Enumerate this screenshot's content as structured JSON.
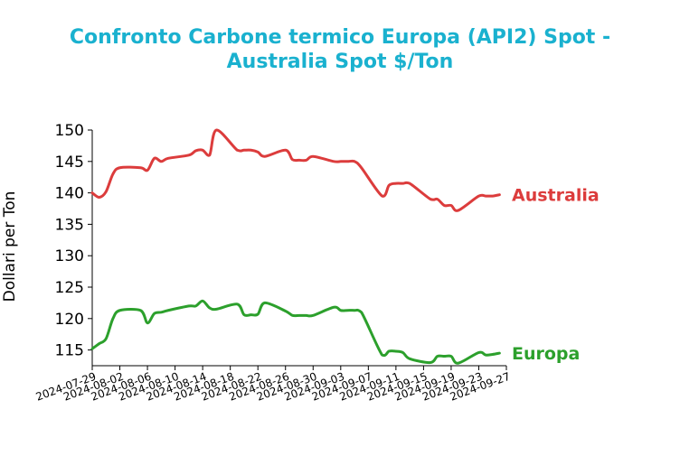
{
  "colors": {
    "title": "#1ab1cf",
    "australia": "#dc3c3c",
    "europa": "#2ca02c",
    "axis": "#000000"
  },
  "chart_data": {
    "type": "line",
    "title_line1": "Confronto Carbone termico Europa (API2) Spot -",
    "title_line2": "Australia Spot $/Ton",
    "xlabel": "",
    "ylabel": "Dollari per Ton",
    "ylim": [
      112.5,
      150
    ],
    "yticks": [
      115,
      120,
      125,
      130,
      135,
      140,
      145,
      150
    ],
    "xlim": [
      "2024-07-29",
      "2024-09-27"
    ],
    "xticks": [
      "2024-07-29",
      "2024-08-02",
      "2024-08-06",
      "2024-08-10",
      "2024-08-14",
      "2024-08-18",
      "2024-08-22",
      "2024-08-26",
      "2024-08-30",
      "2024-09-03",
      "2024-09-07",
      "2024-09-11",
      "2024-09-15",
      "2024-09-19",
      "2024-09-23",
      "2024-09-27"
    ],
    "grid": false,
    "series": [
      {
        "name": "Australia",
        "label": "Australia",
        "color": "#dc3c3c",
        "x": [
          "2024-07-29",
          "2024-07-30",
          "2024-07-31",
          "2024-08-01",
          "2024-08-02",
          "2024-08-05",
          "2024-08-06",
          "2024-08-07",
          "2024-08-08",
          "2024-08-09",
          "2024-08-12",
          "2024-08-13",
          "2024-08-14",
          "2024-08-15",
          "2024-08-16",
          "2024-08-19",
          "2024-08-20",
          "2024-08-21",
          "2024-08-22",
          "2024-08-23",
          "2024-08-26",
          "2024-08-27",
          "2024-08-28",
          "2024-08-29",
          "2024-08-30",
          "2024-09-02",
          "2024-09-03",
          "2024-09-04",
          "2024-09-05",
          "2024-09-06",
          "2024-09-09",
          "2024-09-10",
          "2024-09-11",
          "2024-09-12",
          "2024-09-13",
          "2024-09-16",
          "2024-09-17",
          "2024-09-18",
          "2024-09-19",
          "2024-09-20",
          "2024-09-23",
          "2024-09-24",
          "2024-09-25",
          "2024-09-26"
        ],
        "values": [
          140.0,
          139.3,
          140.2,
          143.0,
          144.0,
          144.0,
          143.6,
          145.5,
          145.0,
          145.5,
          146.0,
          146.7,
          146.8,
          146.0,
          150.0,
          146.8,
          146.8,
          146.8,
          146.5,
          145.8,
          146.8,
          145.3,
          145.2,
          145.2,
          145.8,
          145.0,
          145.0,
          145.0,
          145.0,
          144.0,
          139.5,
          141.2,
          141.5,
          141.5,
          141.5,
          139.0,
          139.0,
          138.0,
          138.0,
          137.2,
          139.5,
          139.5,
          139.5,
          139.7
        ]
      },
      {
        "name": "Europa",
        "label": "Europa",
        "color": "#2ca02c",
        "x": [
          "2024-07-29",
          "2024-07-30",
          "2024-07-31",
          "2024-08-01",
          "2024-08-02",
          "2024-08-05",
          "2024-08-06",
          "2024-08-07",
          "2024-08-08",
          "2024-08-09",
          "2024-08-12",
          "2024-08-13",
          "2024-08-14",
          "2024-08-15",
          "2024-08-16",
          "2024-08-19",
          "2024-08-20",
          "2024-08-21",
          "2024-08-22",
          "2024-08-23",
          "2024-08-26",
          "2024-08-27",
          "2024-08-28",
          "2024-08-29",
          "2024-08-30",
          "2024-09-02",
          "2024-09-03",
          "2024-09-04",
          "2024-09-05",
          "2024-09-06",
          "2024-09-09",
          "2024-09-10",
          "2024-09-11",
          "2024-09-12",
          "2024-09-13",
          "2024-09-16",
          "2024-09-17",
          "2024-09-18",
          "2024-09-19",
          "2024-09-20",
          "2024-09-23",
          "2024-09-24",
          "2024-09-25",
          "2024-09-26"
        ],
        "values": [
          115.2,
          116.0,
          116.8,
          120.0,
          121.3,
          121.3,
          119.3,
          120.8,
          121.0,
          121.3,
          122.0,
          122.0,
          122.8,
          121.7,
          121.5,
          122.3,
          120.6,
          120.6,
          120.7,
          122.5,
          121.2,
          120.5,
          120.5,
          120.5,
          120.5,
          121.8,
          121.3,
          121.3,
          121.3,
          121.0,
          114.2,
          114.8,
          114.8,
          114.6,
          113.6,
          113.0,
          114.0,
          114.0,
          114.0,
          112.9,
          114.6,
          114.2,
          114.3,
          114.5
        ]
      }
    ]
  }
}
